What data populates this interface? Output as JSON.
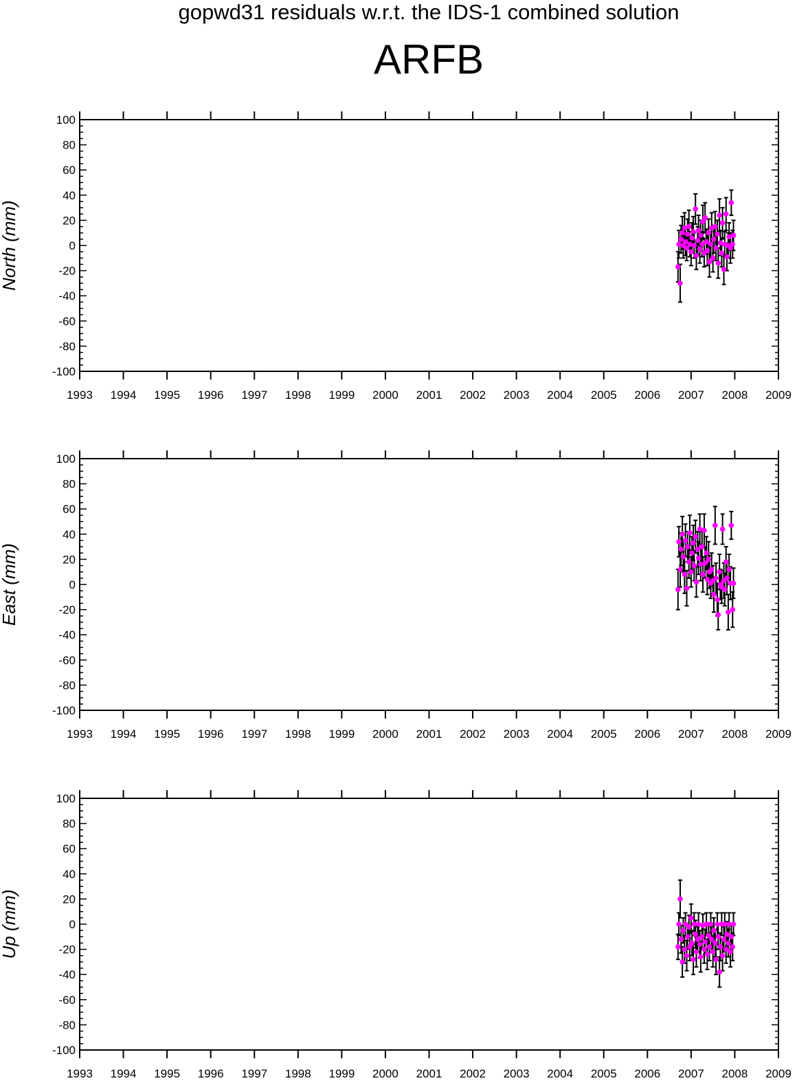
{
  "page": {
    "subtitle": "gopwd31 residuals w.r.t. the IDS-1 combined solution",
    "title": "ARFB"
  },
  "colors": {
    "points": "#ff00ff",
    "error_bars": "#000000",
    "axes": "#000000"
  },
  "chart_data": [
    {
      "type": "scatter",
      "ylabel": "North (mm)",
      "xlim": [
        1993,
        2009
      ],
      "ylim": [
        -100,
        100
      ],
      "x_ticks": [
        "1993",
        "1994",
        "1995",
        "1996",
        "1997",
        "1998",
        "1999",
        "2000",
        "2001",
        "2002",
        "2003",
        "2004",
        "2005",
        "2006",
        "2007",
        "2008",
        "2009"
      ],
      "y_ticks": [
        "100",
        "80",
        "60",
        "40",
        "20",
        "0",
        "-20",
        "-40",
        "-60",
        "-80",
        "-100"
      ],
      "grid": false,
      "series": [
        {
          "x": [
            2006.7,
            2006.72,
            2006.75,
            2006.77,
            2006.8,
            2006.82,
            2006.85,
            2006.87,
            2006.9,
            2006.92,
            2006.95,
            2006.97,
            2007.0,
            2007.02,
            2007.05,
            2007.07,
            2007.1,
            2007.12,
            2007.15,
            2007.17,
            2007.2,
            2007.22,
            2007.25,
            2007.27,
            2007.3,
            2007.32,
            2007.35,
            2007.37,
            2007.4,
            2007.42,
            2007.45,
            2007.47,
            2007.5,
            2007.52,
            2007.55,
            2007.57,
            2007.6,
            2007.62,
            2007.65,
            2007.67,
            2007.7,
            2007.72,
            2007.75,
            2007.77,
            2007.8,
            2007.82,
            2007.85,
            2007.87,
            2007.9,
            2007.92,
            2007.95,
            2007.97
          ],
          "y": [
            -17,
            1,
            -30,
            5,
            10,
            0,
            14,
            3,
            -2,
            9,
            15,
            1,
            -5,
            6,
            11,
            0,
            29,
            -8,
            4,
            12,
            -3,
            8,
            1,
            19,
            -6,
            22,
            3,
            -4,
            10,
            -13,
            1,
            14,
            -10,
            5,
            15,
            -2,
            9,
            -14,
            24,
            2,
            -6,
            18,
            -19,
            1,
            25,
            -9,
            0,
            7,
            -2,
            34,
            1,
            8
          ],
          "err": [
            12,
            11,
            15,
            11,
            13,
            10,
            12,
            11,
            10,
            12,
            13,
            10,
            11,
            12,
            12,
            10,
            12,
            11,
            11,
            12,
            11,
            12,
            10,
            13,
            11,
            12,
            10,
            12,
            11,
            12,
            10,
            12,
            11,
            11,
            12,
            10,
            11,
            12,
            13,
            10,
            11,
            12,
            12,
            10,
            13,
            11,
            10,
            11,
            12,
            10,
            11,
            12
          ]
        }
      ]
    },
    {
      "type": "scatter",
      "ylabel": "East (mm)",
      "xlim": [
        1993,
        2009
      ],
      "ylim": [
        -100,
        100
      ],
      "x_ticks": [
        "1993",
        "1994",
        "1995",
        "1996",
        "1997",
        "1998",
        "1999",
        "2000",
        "2001",
        "2002",
        "2003",
        "2004",
        "2005",
        "2006",
        "2007",
        "2008",
        "2009"
      ],
      "y_ticks": [
        "100",
        "80",
        "60",
        "40",
        "20",
        "0",
        "-20",
        "-40",
        "-60",
        "-80",
        "-100"
      ],
      "grid": false,
      "series": [
        {
          "x": [
            2006.7,
            2006.72,
            2006.75,
            2006.77,
            2006.8,
            2006.82,
            2006.85,
            2006.87,
            2006.9,
            2006.92,
            2006.95,
            2006.97,
            2007.0,
            2007.02,
            2007.05,
            2007.07,
            2007.1,
            2007.12,
            2007.15,
            2007.17,
            2007.2,
            2007.22,
            2007.25,
            2007.27,
            2007.3,
            2007.32,
            2007.35,
            2007.37,
            2007.4,
            2007.42,
            2007.45,
            2007.47,
            2007.5,
            2007.52,
            2007.55,
            2007.57,
            2007.6,
            2007.62,
            2007.65,
            2007.67,
            2007.7,
            2007.72,
            2007.75,
            2007.77,
            2007.8,
            2007.82,
            2007.85,
            2007.87,
            2007.9,
            2007.92,
            2007.95,
            2007.97
          ],
          "y": [
            -4,
            34,
            12,
            28,
            40,
            22,
            8,
            35,
            -3,
            30,
            18,
            41,
            10,
            25,
            33,
            15,
            38,
            2,
            28,
            21,
            44,
            16,
            30,
            8,
            43,
            17,
            25,
            4,
            20,
            10,
            1,
            12,
            3,
            -8,
            47,
            5,
            -12,
            -24,
            10,
            0,
            -2,
            44,
            3,
            -4,
            18,
            5,
            -22,
            12,
            1,
            47,
            -20,
            1
          ],
          "err": [
            16,
            12,
            14,
            13,
            14,
            12,
            15,
            13,
            14,
            12,
            13,
            14,
            12,
            13,
            14,
            12,
            13,
            12,
            14,
            13,
            12,
            13,
            12,
            14,
            13,
            12,
            13,
            12,
            14,
            13,
            12,
            13,
            12,
            14,
            15,
            12,
            13,
            12,
            14,
            12,
            13,
            12,
            14,
            13,
            12,
            13,
            14,
            12,
            13,
            11,
            14,
            12
          ]
        }
      ]
    },
    {
      "type": "scatter",
      "ylabel": "Up (mm)",
      "xlim": [
        1993,
        2009
      ],
      "ylim": [
        -100,
        100
      ],
      "x_ticks": [
        "1993",
        "1994",
        "1995",
        "1996",
        "1997",
        "1998",
        "1999",
        "2000",
        "2001",
        "2002",
        "2003",
        "2004",
        "2005",
        "2006",
        "2007",
        "2008",
        "2009"
      ],
      "y_ticks": [
        "100",
        "80",
        "60",
        "40",
        "20",
        "0",
        "-20",
        "-40",
        "-60",
        "-80",
        "-100"
      ],
      "grid": false,
      "series": [
        {
          "x": [
            2006.7,
            2006.72,
            2006.75,
            2006.77,
            2006.8,
            2006.82,
            2006.85,
            2006.87,
            2006.9,
            2006.92,
            2006.95,
            2006.97,
            2007.0,
            2007.02,
            2007.05,
            2007.07,
            2007.1,
            2007.12,
            2007.15,
            2007.17,
            2007.2,
            2007.22,
            2007.25,
            2007.27,
            2007.3,
            2007.32,
            2007.35,
            2007.37,
            2007.4,
            2007.42,
            2007.45,
            2007.47,
            2007.5,
            2007.52,
            2007.55,
            2007.57,
            2007.6,
            2007.62,
            2007.65,
            2007.67,
            2007.7,
            2007.72,
            2007.75,
            2007.77,
            2007.8,
            2007.82,
            2007.85,
            2007.87,
            2007.9,
            2007.92,
            2007.95,
            2007.97
          ],
          "y": [
            -18,
            0,
            20,
            -12,
            -30,
            -5,
            -20,
            0,
            -25,
            -10,
            -2,
            -18,
            5,
            -15,
            -28,
            0,
            -8,
            -22,
            -12,
            0,
            -16,
            -26,
            -10,
            -1,
            -20,
            -14,
            0,
            -24,
            -9,
            -18,
            0,
            -12,
            -22,
            -5,
            -15,
            -28,
            0,
            -10,
            -38,
            -18,
            0,
            -25,
            -12,
            0,
            -20,
            -8,
            -15,
            0,
            -22,
            -10,
            -18,
            0
          ],
          "err": [
            10,
            9,
            15,
            11,
            12,
            10,
            11,
            9,
            12,
            10,
            9,
            11,
            11,
            10,
            12,
            9,
            11,
            12,
            10,
            9,
            11,
            12,
            10,
            9,
            11,
            10,
            9,
            12,
            10,
            11,
            9,
            10,
            12,
            10,
            11,
            12,
            9,
            10,
            12,
            11,
            9,
            12,
            10,
            9,
            11,
            10,
            11,
            9,
            12,
            10,
            11,
            9
          ]
        }
      ]
    }
  ]
}
